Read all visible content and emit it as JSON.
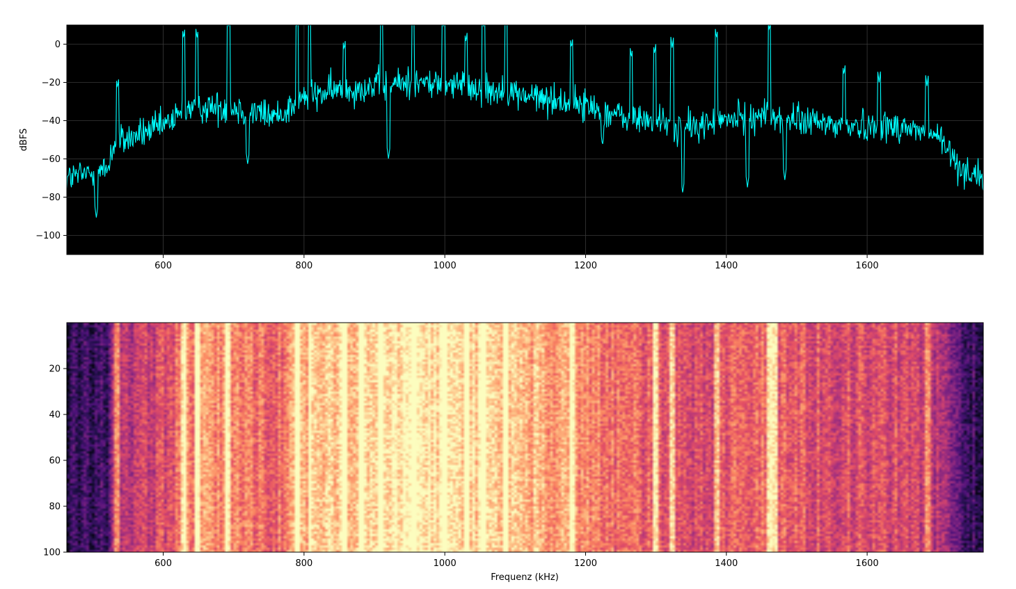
{
  "chart_data": [
    {
      "type": "line",
      "xlabel": "",
      "ylabel": "dBFS",
      "xlim": [
        463,
        1765
      ],
      "ylim": [
        -110,
        10
      ],
      "x_ticks": [
        600,
        800,
        1000,
        1200,
        1400,
        1600
      ],
      "y_ticks": [
        0,
        -20,
        -40,
        -60,
        -80,
        -100
      ],
      "grid": true,
      "background": "#000000",
      "line_color": "#00ffff",
      "envelope": [
        [
          463,
          -70
        ],
        [
          520,
          -66
        ],
        [
          530,
          -52
        ],
        [
          600,
          -43
        ],
        [
          640,
          -33
        ],
        [
          700,
          -33
        ],
        [
          760,
          -38
        ],
        [
          800,
          -28
        ],
        [
          850,
          -24
        ],
        [
          900,
          -22
        ],
        [
          950,
          -20
        ],
        [
          1000,
          -21
        ],
        [
          1050,
          -23
        ],
        [
          1100,
          -26
        ],
        [
          1150,
          -29
        ],
        [
          1200,
          -32
        ],
        [
          1250,
          -38
        ],
        [
          1300,
          -40
        ],
        [
          1340,
          -44
        ],
        [
          1400,
          -40
        ],
        [
          1450,
          -37
        ],
        [
          1500,
          -40
        ],
        [
          1550,
          -42
        ],
        [
          1600,
          -43
        ],
        [
          1650,
          -43
        ],
        [
          1700,
          -48
        ],
        [
          1730,
          -64
        ],
        [
          1765,
          -70
        ]
      ],
      "peaks": [
        [
          505,
          -91
        ],
        [
          535,
          -23
        ],
        [
          629,
          3
        ],
        [
          648,
          3
        ],
        [
          693,
          9
        ],
        [
          720,
          -63
        ],
        [
          790,
          9
        ],
        [
          808,
          9
        ],
        [
          857,
          -3
        ],
        [
          910,
          9
        ],
        [
          920,
          -60
        ],
        [
          955,
          9
        ],
        [
          998,
          9
        ],
        [
          1030,
          1
        ],
        [
          1055,
          9
        ],
        [
          1087,
          9
        ],
        [
          1180,
          -2
        ],
        [
          1224,
          -53
        ],
        [
          1265,
          -7
        ],
        [
          1298,
          -5
        ],
        [
          1323,
          -2
        ],
        [
          1338,
          -78
        ],
        [
          1386,
          3
        ],
        [
          1430,
          -75
        ],
        [
          1461,
          7
        ],
        [
          1483,
          -71
        ],
        [
          1567,
          -16
        ],
        [
          1617,
          -20
        ],
        [
          1685,
          -22
        ]
      ]
    },
    {
      "type": "heatmap",
      "xlabel": "Frequenz (kHz)",
      "ylabel": "",
      "xlim": [
        463,
        1765
      ],
      "ylim": [
        100,
        0
      ],
      "x_ticks": [
        600,
        800,
        1000,
        1200,
        1400,
        1600
      ],
      "y_ticks": [
        20,
        40,
        60,
        80,
        100
      ],
      "colormap": "magma",
      "rows": 100,
      "bright_lines": [
        535,
        630,
        648,
        693,
        790,
        808,
        857,
        880,
        910,
        955,
        1000,
        1030,
        1055,
        1087,
        1180,
        1298,
        1323,
        1386,
        1461,
        1468,
        1685
      ]
    }
  ]
}
